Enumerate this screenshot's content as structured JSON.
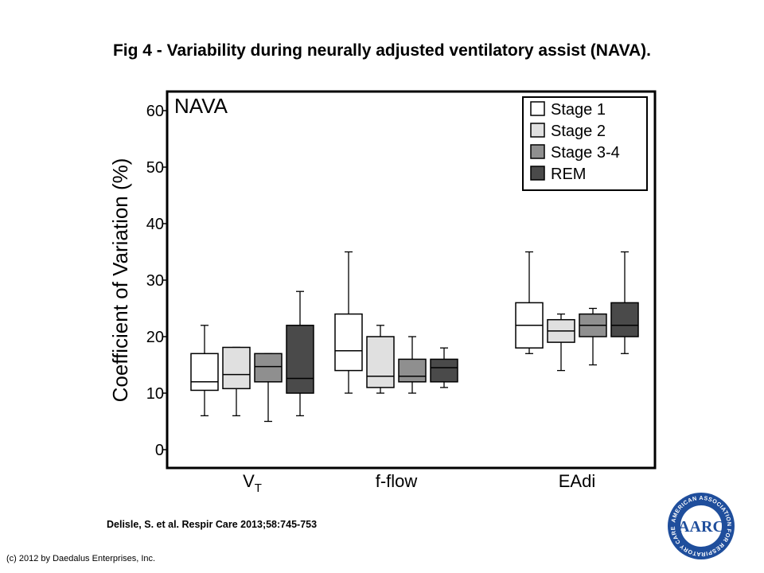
{
  "slide": {
    "title": "Fig 4 - Variability during neurally adjusted ventilatory assist (NAVA).",
    "citation": "Delisle, S. et al. Respir Care 2013;58:745-753",
    "copyright": "(c) 2012 by Daedalus Enterprises, Inc.",
    "logo_text": "AARC",
    "logo_ring_text": "AMERICAN ASSOCIATION FOR RESPIRATORY CARE"
  },
  "chart_data": {
    "type": "box",
    "title": "NAVA",
    "ylabel": "Coefficient of Variation (%)",
    "xlabel": "",
    "ylim": [
      0,
      60
    ],
    "yticks": [
      0,
      10,
      20,
      30,
      40,
      50,
      60
    ],
    "grid": false,
    "legend_position": "top-right",
    "categories": [
      {
        "label": "V",
        "subscript": "T"
      },
      {
        "label": "f-flow",
        "subscript": ""
      },
      {
        "label": "EAdi",
        "subscript": ""
      }
    ],
    "series": [
      {
        "name": "Stage 1",
        "color": "#ffffff",
        "boxes": [
          {
            "min": 6,
            "q1": 10.5,
            "median": 12,
            "q3": 17,
            "max": 22
          },
          {
            "min": 10,
            "q1": 14,
            "median": 17.5,
            "q3": 24,
            "max": 35
          },
          {
            "min": 17,
            "q1": 18,
            "median": 22,
            "q3": 26,
            "max": 35
          }
        ]
      },
      {
        "name": "Stage 2",
        "color": "#e0e0e0",
        "boxes": [
          {
            "min": 6,
            "q1": 10.8,
            "median": 13.3,
            "q3": 18.1,
            "max": 18.1
          },
          {
            "min": 10,
            "q1": 11,
            "median": 13,
            "q3": 20,
            "max": 22
          },
          {
            "min": 14,
            "q1": 19,
            "median": 21,
            "q3": 23,
            "max": 24
          }
        ]
      },
      {
        "name": "Stage 3-4",
        "color": "#8f8f8f",
        "boxes": [
          {
            "min": 5,
            "q1": 12,
            "median": 14.7,
            "q3": 17,
            "max": 17
          },
          {
            "min": 10,
            "q1": 12,
            "median": 13,
            "q3": 16,
            "max": 20
          },
          {
            "min": 15,
            "q1": 20,
            "median": 22,
            "q3": 24,
            "max": 25
          }
        ]
      },
      {
        "name": "REM",
        "color": "#4a4a4a",
        "boxes": [
          {
            "min": 6,
            "q1": 10,
            "median": 12.6,
            "q3": 22,
            "max": 28
          },
          {
            "min": 11,
            "q1": 12,
            "median": 14.5,
            "q3": 16,
            "max": 18
          },
          {
            "min": 17,
            "q1": 20,
            "median": 22,
            "q3": 26,
            "max": 35
          }
        ]
      }
    ]
  }
}
